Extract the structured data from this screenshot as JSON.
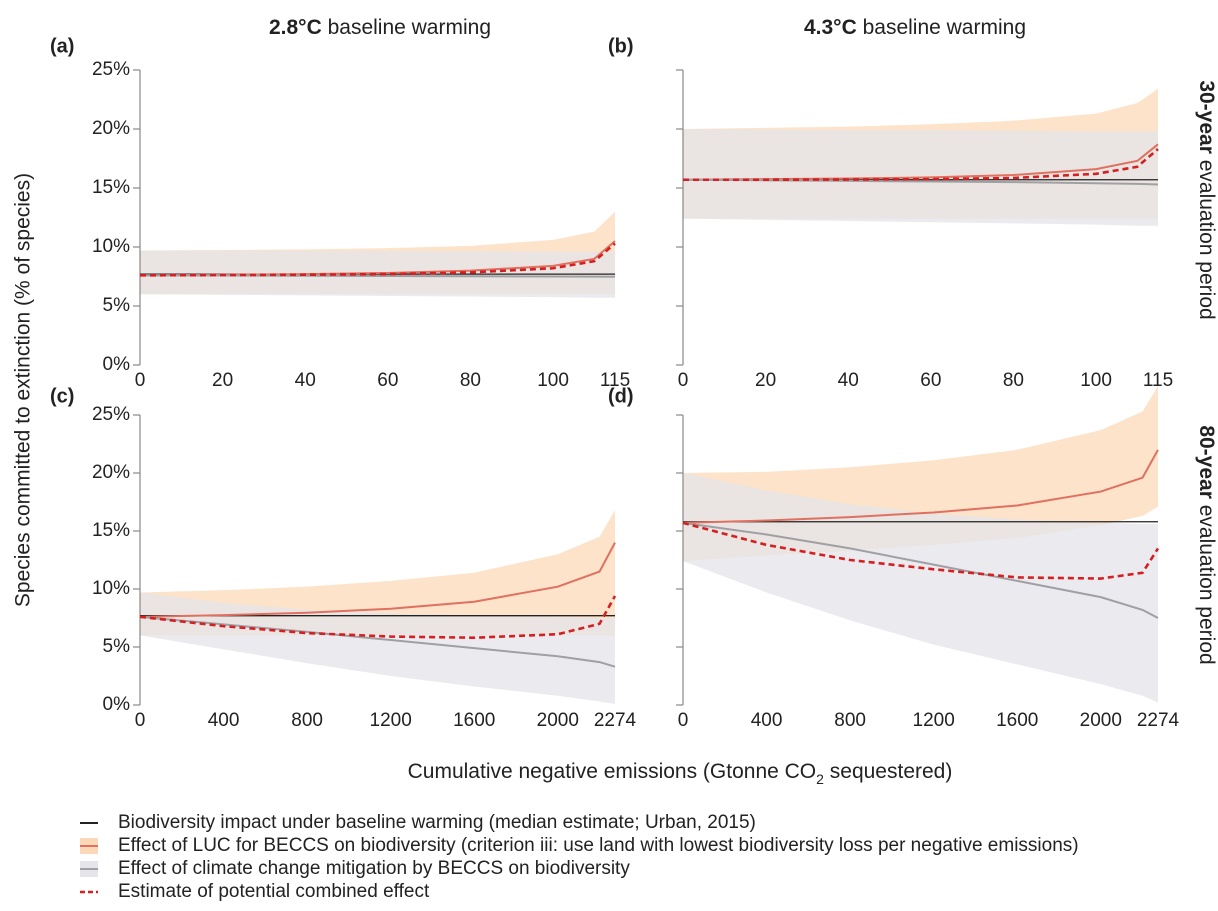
{
  "figure": {
    "column_titles": [
      {
        "bold": "2.8°C",
        "rest": " baseline warming"
      },
      {
        "bold": "4.3°C",
        "rest": " baseline warming"
      }
    ],
    "row_labels": [
      {
        "bold": "30-year",
        "rest": " evaluation period"
      },
      {
        "bold": "80-year",
        "rest": " evaluation period"
      }
    ],
    "ylabel": "Species committed to extinction (% of species)",
    "xlabel": {
      "before": "Cumulative negative emissions (Gtonne CO",
      "sub": "2",
      "after": " sequestered)"
    }
  },
  "chart_data": [
    {
      "type": "line",
      "panel_label": "(a)",
      "x": [
        0,
        20,
        40,
        60,
        80,
        100,
        110,
        115
      ],
      "xlim": [
        0,
        115
      ],
      "xticks": [
        0,
        20,
        40,
        60,
        80,
        100,
        115
      ],
      "ylim": [
        0,
        25
      ],
      "yticks": [
        {
          "value": 0,
          "label": "0%"
        },
        {
          "value": 5,
          "label": "5%"
        },
        {
          "value": 10,
          "label": "10%"
        },
        {
          "value": 15,
          "label": "15%"
        },
        {
          "value": 20,
          "label": "20%"
        },
        {
          "value": 25,
          "label": "25%"
        }
      ],
      "series": [
        {
          "name": "Biodiversity impact under baseline warming (median estimate; Urban, 2015)",
          "color": "#222222",
          "values": [
            7.7,
            7.7,
            7.7,
            7.7,
            7.7,
            7.7,
            7.7,
            7.7
          ]
        },
        {
          "name": "Effect of LUC for BECCS on biodiversity (criterion iii: use land with lowest biodiversity loss per negative emissions)",
          "color": "#e07060",
          "band_color": "#fbd9b8",
          "values": [
            7.6,
            7.65,
            7.7,
            7.8,
            8.0,
            8.4,
            9.0,
            10.5
          ],
          "lower": [
            6.0,
            6.0,
            6.0,
            6.0,
            6.0,
            6.0,
            6.0,
            6.0
          ],
          "upper": [
            9.7,
            9.75,
            9.8,
            9.9,
            10.1,
            10.6,
            11.3,
            13.0
          ]
        },
        {
          "name": "Effect of climate change mitigation by BECCS on biodiversity",
          "color": "#a0a0a4",
          "band_color": "#e4e4ea",
          "values": [
            7.6,
            7.58,
            7.56,
            7.54,
            7.52,
            7.5,
            7.49,
            7.48
          ],
          "lower": [
            6.0,
            5.95,
            5.9,
            5.85,
            5.8,
            5.75,
            5.7,
            5.7
          ],
          "upper": [
            9.7,
            9.7,
            9.68,
            9.66,
            9.64,
            9.62,
            9.6,
            9.6
          ]
        },
        {
          "name": "Estimate of potential combined effect",
          "color": "#d42020",
          "dash": true,
          "values": [
            7.6,
            7.62,
            7.65,
            7.7,
            7.85,
            8.2,
            8.8,
            10.3
          ]
        }
      ]
    },
    {
      "type": "line",
      "panel_label": "(b)",
      "ytick_labels": false,
      "x": [
        0,
        20,
        40,
        60,
        80,
        100,
        110,
        115
      ],
      "xlim": [
        0,
        115
      ],
      "xticks": [
        0,
        20,
        40,
        60,
        80,
        100,
        115
      ],
      "ylim": [
        0,
        25
      ],
      "yticks": [
        0,
        5,
        10,
        15,
        20,
        25
      ],
      "series": [
        {
          "name": "Biodiversity impact under baseline warming (median estimate; Urban, 2015)",
          "color": "#222222",
          "values": [
            15.7,
            15.7,
            15.7,
            15.7,
            15.7,
            15.7,
            15.7,
            15.7
          ]
        },
        {
          "name": "Effect of LUC for BECCS on biodiversity (criterion iii: use land with lowest biodiversity loss per negative emissions)",
          "color": "#e07060",
          "band_color": "#fbd9b8",
          "values": [
            15.7,
            15.75,
            15.8,
            15.9,
            16.1,
            16.6,
            17.3,
            18.7
          ],
          "lower": [
            12.4,
            12.4,
            12.4,
            12.4,
            12.4,
            12.4,
            12.4,
            12.4
          ],
          "upper": [
            20.0,
            20.1,
            20.2,
            20.4,
            20.7,
            21.3,
            22.2,
            23.4
          ]
        },
        {
          "name": "Effect of climate change mitigation by BECCS on biodiversity",
          "color": "#a0a0a4",
          "band_color": "#e4e4ea",
          "values": [
            15.7,
            15.65,
            15.6,
            15.55,
            15.5,
            15.4,
            15.35,
            15.3
          ],
          "lower": [
            12.4,
            12.3,
            12.2,
            12.1,
            12.0,
            11.9,
            11.8,
            11.8
          ],
          "upper": [
            20.0,
            19.95,
            19.9,
            19.9,
            19.85,
            19.8,
            19.8,
            19.8
          ]
        },
        {
          "name": "Estimate of potential combined effect",
          "color": "#d42020",
          "dash": true,
          "values": [
            15.7,
            15.7,
            15.72,
            15.75,
            15.85,
            16.2,
            16.8,
            18.3
          ]
        }
      ]
    },
    {
      "type": "line",
      "panel_label": "(c)",
      "x": [
        0,
        400,
        800,
        1200,
        1600,
        2000,
        2200,
        2274
      ],
      "xlim": [
        0,
        2274
      ],
      "xticks": [
        0,
        400,
        800,
        1200,
        1600,
        2000,
        2274
      ],
      "ylim": [
        0,
        25
      ],
      "yticks": [
        {
          "value": 0,
          "label": "0%"
        },
        {
          "value": 5,
          "label": "5%"
        },
        {
          "value": 10,
          "label": "10%"
        },
        {
          "value": 15,
          "label": "15%"
        },
        {
          "value": 20,
          "label": "20%"
        },
        {
          "value": 25,
          "label": "25%"
        }
      ],
      "series": [
        {
          "name": "Biodiversity impact under baseline warming (median estimate; Urban, 2015)",
          "color": "#222222",
          "values": [
            7.7,
            7.7,
            7.7,
            7.7,
            7.7,
            7.7,
            7.7,
            7.7
          ]
        },
        {
          "name": "Effect of LUC for BECCS on biodiversity (criterion iii: use land with lowest biodiversity loss per negative emissions)",
          "color": "#e07060",
          "band_color": "#fbd9b8",
          "values": [
            7.6,
            7.75,
            7.95,
            8.3,
            8.9,
            10.2,
            11.5,
            14.0
          ],
          "lower": [
            6.0,
            6.0,
            6.0,
            6.0,
            6.0,
            6.0,
            6.0,
            6.0
          ],
          "upper": [
            9.7,
            9.9,
            10.2,
            10.7,
            11.4,
            13.0,
            14.5,
            16.8
          ]
        },
        {
          "name": "Effect of climate change mitigation by BECCS on biodiversity",
          "color": "#a0a0a4",
          "band_color": "#e4e4ea",
          "values": [
            7.6,
            6.95,
            6.3,
            5.6,
            4.9,
            4.2,
            3.7,
            3.3
          ],
          "lower": [
            6.0,
            4.8,
            3.6,
            2.5,
            1.6,
            0.8,
            0.3,
            0.1
          ],
          "upper": [
            9.7,
            8.8,
            8.2,
            7.9,
            7.7,
            7.6,
            7.5,
            7.5
          ]
        },
        {
          "name": "Estimate of potential combined effect",
          "color": "#d42020",
          "dash": true,
          "values": [
            7.6,
            6.8,
            6.2,
            5.9,
            5.8,
            6.1,
            7.0,
            9.4
          ]
        }
      ]
    },
    {
      "type": "line",
      "panel_label": "(d)",
      "ytick_labels": false,
      "x": [
        0,
        400,
        800,
        1200,
        1600,
        2000,
        2200,
        2274
      ],
      "xlim": [
        0,
        2274
      ],
      "xticks": [
        0,
        400,
        800,
        1200,
        1600,
        2000,
        2274
      ],
      "ylim": [
        0,
        25
      ],
      "yticks": [
        0,
        5,
        10,
        15,
        20,
        25
      ],
      "series": [
        {
          "name": "Biodiversity impact under baseline warming (median estimate; Urban, 2015)",
          "color": "#222222",
          "values": [
            15.8,
            15.8,
            15.8,
            15.8,
            15.8,
            15.8,
            15.8,
            15.8
          ]
        },
        {
          "name": "Effect of LUC for BECCS on biodiversity (criterion iii: use land with lowest biodiversity loss per negative emissions)",
          "color": "#e07060",
          "band_color": "#fbd9b8",
          "values": [
            15.7,
            15.9,
            16.2,
            16.6,
            17.2,
            18.4,
            19.6,
            22.0
          ],
          "lower": [
            12.4,
            12.9,
            13.3,
            13.8,
            14.4,
            15.5,
            16.3,
            17.1
          ],
          "upper": [
            20.0,
            20.1,
            20.5,
            21.1,
            22.0,
            23.7,
            25.3,
            27.5
          ]
        },
        {
          "name": "Effect of climate change mitigation by BECCS on biodiversity",
          "color": "#a0a0a4",
          "band_color": "#e4e4ea",
          "values": [
            15.7,
            14.7,
            13.5,
            12.1,
            10.7,
            9.3,
            8.2,
            7.5
          ],
          "lower": [
            12.4,
            9.7,
            7.3,
            5.2,
            3.5,
            1.8,
            0.8,
            0.2
          ],
          "upper": [
            20.0,
            18.5,
            17.3,
            16.5,
            16.0,
            15.7,
            15.6,
            15.6
          ]
        },
        {
          "name": "Estimate of potential combined effect",
          "color": "#d42020",
          "dash": true,
          "values": [
            15.7,
            13.8,
            12.5,
            11.7,
            11.0,
            10.9,
            11.4,
            13.5
          ]
        }
      ]
    }
  ]
}
